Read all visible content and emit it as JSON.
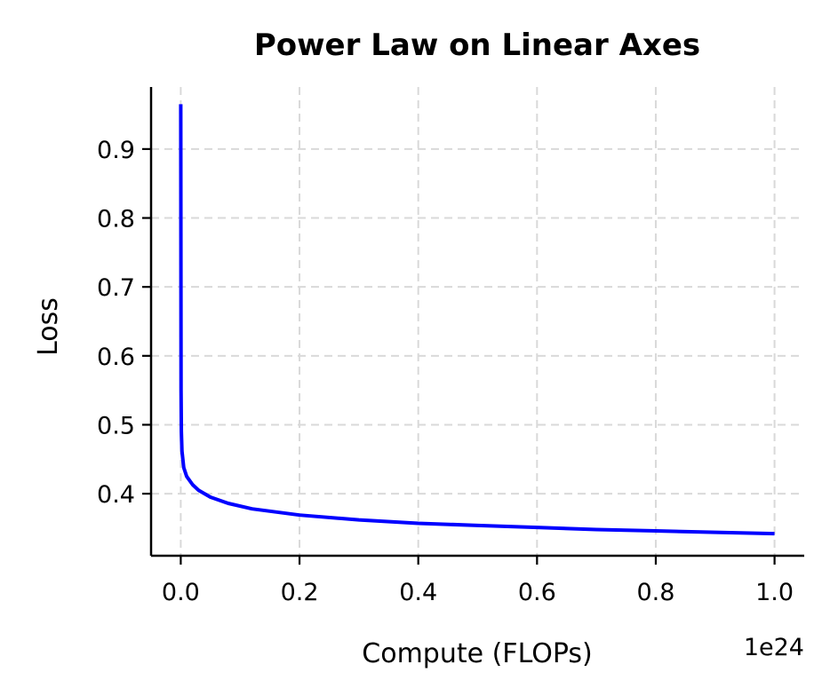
{
  "chart_data": {
    "type": "line",
    "title": "Power Law on Linear Axes",
    "xlabel": "Compute (FLOPs)",
    "ylabel": "Loss",
    "x_offset_label": "1e24",
    "xlim": [
      -0.05,
      1.05
    ],
    "ylim": [
      0.31,
      0.99
    ],
    "x_ticks": [
      0.0,
      0.2,
      0.4,
      0.6,
      0.8,
      1.0
    ],
    "x_tick_labels": [
      "0.0",
      "0.2",
      "0.4",
      "0.6",
      "0.8",
      "1.0"
    ],
    "y_ticks": [
      0.4,
      0.5,
      0.6,
      0.7,
      0.8,
      0.9
    ],
    "y_tick_labels": [
      "0.4",
      "0.5",
      "0.6",
      "0.7",
      "0.8",
      "0.9"
    ],
    "grid": true,
    "series": [
      {
        "color": "#0000ff",
        "x": [
          0.0,
          0.0005,
          0.001,
          0.002,
          0.005,
          0.01,
          0.02,
          0.03,
          0.05,
          0.08,
          0.12,
          0.2,
          0.3,
          0.4,
          0.5,
          0.6,
          0.7,
          0.8,
          0.9,
          1.0
        ],
        "y": [
          0.965,
          0.55,
          0.49,
          0.462,
          0.438,
          0.425,
          0.413,
          0.405,
          0.395,
          0.386,
          0.378,
          0.369,
          0.362,
          0.357,
          0.354,
          0.351,
          0.348,
          0.346,
          0.344,
          0.342
        ]
      }
    ]
  }
}
